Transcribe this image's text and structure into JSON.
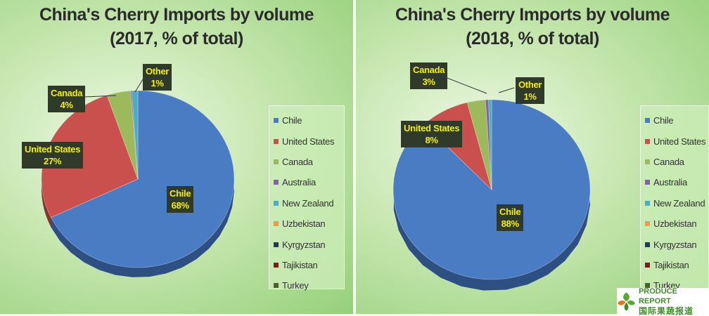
{
  "chart_data": [
    {
      "type": "pie",
      "title": "China's Cherry Imports by volume",
      "subtitle": "(2017, % of total)",
      "legend_entries": [
        "Chile",
        "United States",
        "Canada",
        "Australia",
        "New Zealand",
        "Uzbekistan",
        "Kyrgyzstan",
        "Tajikistan",
        "Turkey"
      ],
      "legend_position": "right",
      "slices": [
        {
          "label": "Chile",
          "value": 68,
          "color": "#4a7cc4",
          "dark": "#2e4f82",
          "shown": true
        },
        {
          "label": "United States",
          "value": 27,
          "color": "#c9504c",
          "dark": "#873330",
          "shown": true
        },
        {
          "label": "Canada",
          "value": 4,
          "color": "#9cba5c",
          "dark": "#677c3a",
          "shown": true
        },
        {
          "label": "Australia",
          "value": 0.2,
          "color": "#8064a2",
          "dark": "#55426c",
          "shown": false
        },
        {
          "label": "New Zealand",
          "value": 1,
          "color": "#4bacc6",
          "dark": "#317284",
          "shown": false
        }
      ],
      "data_labels": [
        {
          "name": "Chile",
          "value": "68%"
        },
        {
          "name": "United States",
          "value": "27%"
        },
        {
          "name": "Canada",
          "value": "4%"
        },
        {
          "name": "Other",
          "value": "1%"
        }
      ]
    },
    {
      "type": "pie",
      "title": "China's Cherry Imports by volume",
      "subtitle": "(2018, % of total)",
      "legend_entries": [
        "Chile",
        "United States",
        "Canada",
        "Australia",
        "New Zealand",
        "Uzbekistan",
        "Kyrgyzstan",
        "Tajikistan",
        "Turkey"
      ],
      "legend_position": "right",
      "slices": [
        {
          "label": "Chile",
          "value": 88,
          "color": "#4a7cc4",
          "dark": "#2e4f82",
          "shown": true
        },
        {
          "label": "United States",
          "value": 8,
          "color": "#c9504c",
          "dark": "#873330",
          "shown": true
        },
        {
          "label": "Canada",
          "value": 3,
          "color": "#9cba5c",
          "dark": "#677c3a",
          "shown": true
        },
        {
          "label": "Australia",
          "value": 0.5,
          "color": "#8064a2",
          "dark": "#55426c",
          "shown": false
        },
        {
          "label": "New Zealand",
          "value": 0.5,
          "color": "#4bacc6",
          "dark": "#317284",
          "shown": false
        }
      ],
      "data_labels": [
        {
          "name": "Chile",
          "value": "88%"
        },
        {
          "name": "United States",
          "value": "8%"
        },
        {
          "name": "Canada",
          "value": "3%"
        },
        {
          "name": "Other",
          "value": "1%"
        }
      ]
    }
  ],
  "legend_colors": [
    "#4a7cc4",
    "#c9504c",
    "#9cba5c",
    "#8064a2",
    "#4bacc6",
    "#f79646",
    "#1f3864",
    "#7a1f1f",
    "#4f6228"
  ],
  "logo": {
    "name_en": "PRODUCE REPORT",
    "name_cn": "国际果蔬报道"
  }
}
